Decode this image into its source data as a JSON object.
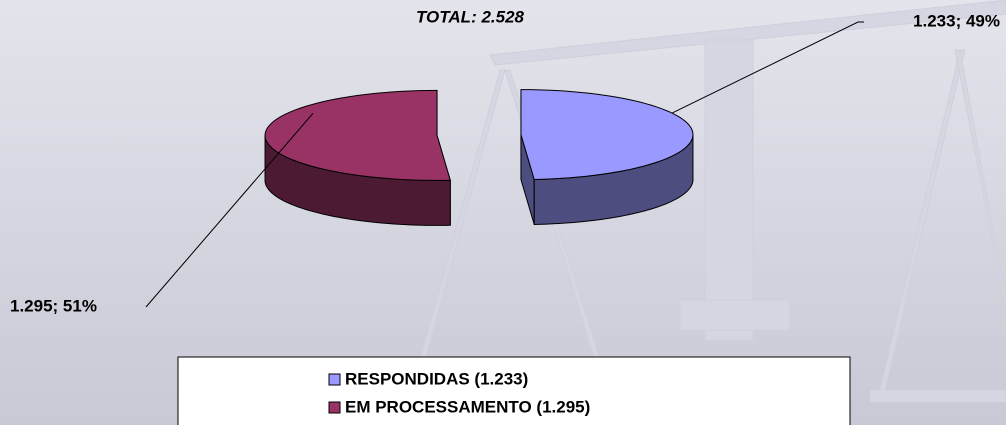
{
  "chart_data": {
    "type": "pie",
    "title": "TOTAL: 2.528",
    "categories": [
      "RESPONDIDAS (1.233)",
      "EM PROCESSAMENTO (1.295)"
    ],
    "values": [
      1233,
      1295
    ],
    "value_labels": [
      "1.233; 49%",
      "1.295; 51%"
    ],
    "colors": [
      "#9999ff",
      "#993366"
    ]
  }
}
